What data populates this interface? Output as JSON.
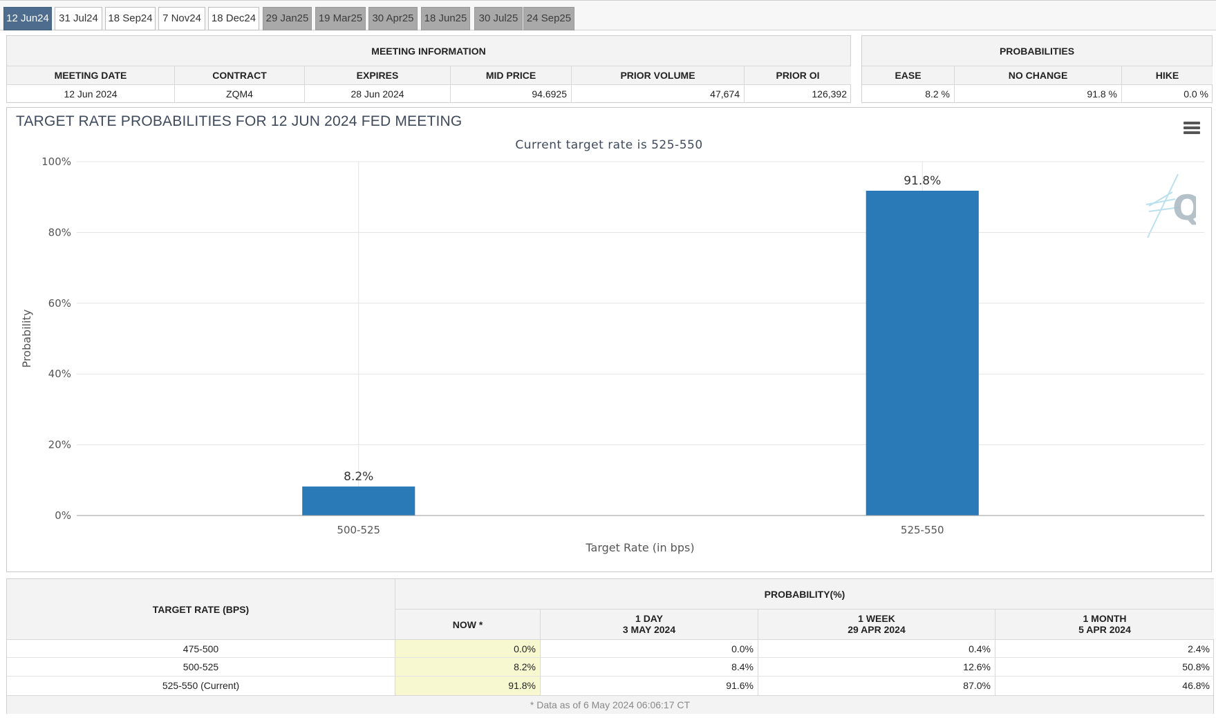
{
  "tabs": [
    {
      "label": "12 Jun24",
      "state": "active"
    },
    {
      "label": "31 Jul24",
      "state": "normal"
    },
    {
      "label": "18 Sep24",
      "state": "normal"
    },
    {
      "label": "7 Nov24",
      "state": "normal"
    },
    {
      "label": "18 Dec24",
      "state": "normal"
    },
    {
      "label": "29 Jan25",
      "state": "future"
    },
    {
      "label": "19 Mar25",
      "state": "future"
    },
    {
      "label": "30 Apr25",
      "state": "future"
    },
    {
      "label": "18 Jun25",
      "state": "future"
    },
    {
      "label": "30 Jul25",
      "state": "future"
    },
    {
      "label": "24 Sep25",
      "state": "future"
    }
  ],
  "meeting_info": {
    "title": "MEETING INFORMATION",
    "headers": [
      "MEETING DATE",
      "CONTRACT",
      "EXPIRES",
      "MID PRICE",
      "PRIOR VOLUME",
      "PRIOR OI"
    ],
    "values": [
      "12 Jun 2024",
      "ZQM4",
      "28 Jun 2024",
      "94.6925",
      "47,674",
      "126,392"
    ]
  },
  "probabilities": {
    "title": "PROBABILITIES",
    "headers": [
      "EASE",
      "NO CHANGE",
      "HIKE"
    ],
    "values": [
      "8.2 %",
      "91.8 %",
      "0.0 %"
    ]
  },
  "chart": {
    "menu_icon": "hamburger-menu-icon",
    "watermark_icon": "cme-q-logo-icon",
    "accent_color": "#2a7ab8"
  },
  "chart_data": {
    "type": "bar",
    "title": "TARGET RATE PROBABILITIES FOR 12 JUN 2024 FED MEETING",
    "subtitle": "Current target rate is 525-550",
    "xlabel": "Target Rate (in bps)",
    "ylabel": "Probability",
    "categories": [
      "500-525",
      "525-550"
    ],
    "values": [
      8.2,
      91.8
    ],
    "data_labels": [
      "8.2%",
      "91.8%"
    ],
    "yticks": [
      "0%",
      "20%",
      "40%",
      "60%",
      "80%",
      "100%"
    ],
    "ylim": [
      0,
      100
    ],
    "grid": true,
    "bar_color": "#2a7ab8"
  },
  "history_table": {
    "col_title": "TARGET RATE (BPS)",
    "group_title": "PROBABILITY(%)",
    "columns": [
      {
        "line1": "NOW *",
        "line2": ""
      },
      {
        "line1": "1 DAY",
        "line2": "3 MAY 2024"
      },
      {
        "line1": "1 WEEK",
        "line2": "29 APR 2024"
      },
      {
        "line1": "1 MONTH",
        "line2": "5 APR 2024"
      }
    ],
    "rows": [
      {
        "rate": "475-500",
        "values": [
          "0.0%",
          "0.0%",
          "0.4%",
          "2.4%"
        ]
      },
      {
        "rate": "500-525",
        "values": [
          "8.2%",
          "8.4%",
          "12.6%",
          "50.8%"
        ]
      },
      {
        "rate": "525-550 (Current)",
        "values": [
          "91.8%",
          "91.6%",
          "87.0%",
          "46.8%"
        ]
      }
    ],
    "footnote": "* Data as of 6 May 2024 06:06:17 CT"
  }
}
